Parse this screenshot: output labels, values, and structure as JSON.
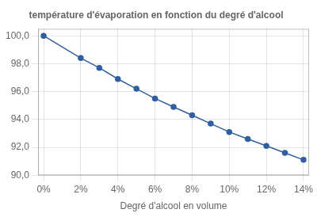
{
  "chart_data": {
    "type": "line",
    "title": "température d'évaporation en fonction du degré d'alcool",
    "xlabel": "Degré d'alcool en volume",
    "x": [
      0,
      2,
      3,
      4,
      5,
      6,
      7,
      8,
      9,
      10,
      11,
      12,
      13,
      14
    ],
    "values": [
      100.0,
      98.4,
      97.7,
      96.9,
      96.2,
      95.5,
      94.9,
      94.3,
      93.7,
      93.1,
      92.6,
      92.1,
      91.6,
      91.1
    ],
    "color": "#2E5FA3",
    "marker": "circle",
    "xlim": [
      -0.3,
      14.3
    ],
    "xticks": [
      {
        "value": 0,
        "label": "0%"
      },
      {
        "value": 2,
        "label": "2%"
      },
      {
        "value": 4,
        "label": "4%"
      },
      {
        "value": 6,
        "label": "6%"
      },
      {
        "value": 8,
        "label": "8%"
      },
      {
        "value": 10,
        "label": "10%"
      },
      {
        "value": 12,
        "label": "12%"
      },
      {
        "value": 14,
        "label": "14%"
      }
    ],
    "ylim": [
      90.0,
      100.5
    ],
    "yticks": [
      {
        "value": 90.0,
        "label": "90,0"
      },
      {
        "value": 92.0,
        "label": "92,0"
      },
      {
        "value": 94.0,
        "label": "94,0"
      },
      {
        "value": 96.0,
        "label": "96,0"
      },
      {
        "value": 98.0,
        "label": "98,0"
      },
      {
        "value": 100.0,
        "label": "100,0"
      }
    ],
    "grid": true
  }
}
